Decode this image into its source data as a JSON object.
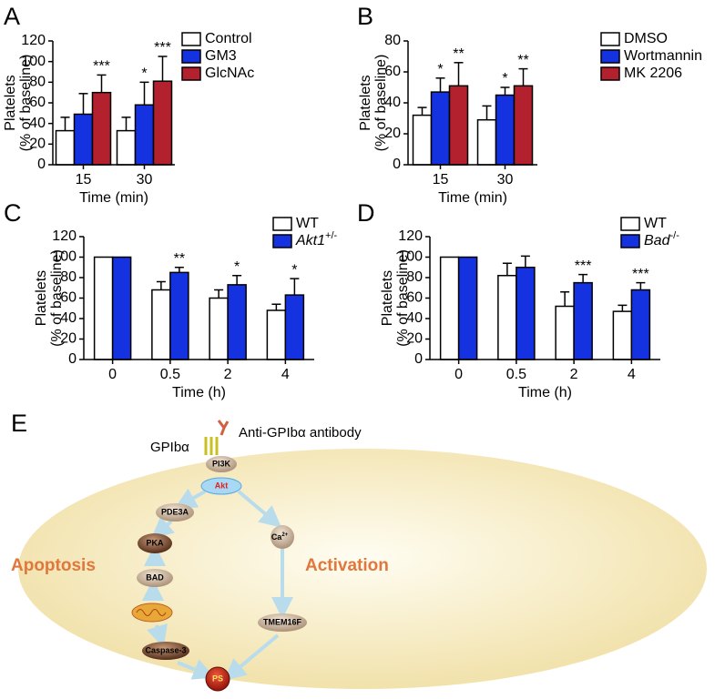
{
  "chart_data": [
    {
      "type": "bar",
      "panel": "A",
      "ylabel": [
        "Platelets",
        "(% of baseline)"
      ],
      "xlabel": "Time (min)",
      "categories": [
        "15",
        "30"
      ],
      "ylim": [
        0,
        120
      ],
      "yticks": [
        0,
        20,
        40,
        60,
        80,
        100,
        120
      ],
      "series": [
        {
          "name": "Control",
          "color": "#ffffff",
          "values": [
            33,
            33
          ],
          "errors": [
            13,
            13
          ],
          "significance": [
            null,
            null
          ]
        },
        {
          "name": "GM3",
          "color": "#1432e0",
          "values": [
            49,
            58
          ],
          "errors": [
            20,
            22
          ],
          "significance": [
            null,
            "*"
          ]
        },
        {
          "name": "GlcNAc",
          "color": "#b3202e",
          "values": [
            70,
            81
          ],
          "errors": [
            17,
            24
          ],
          "significance": [
            "***",
            "***"
          ]
        }
      ]
    },
    {
      "type": "bar",
      "panel": "B",
      "ylabel": [
        "Platelets",
        "(% of baseline)"
      ],
      "xlabel": "Time (min)",
      "categories": [
        "15",
        "30"
      ],
      "ylim": [
        0,
        80
      ],
      "yticks": [
        0,
        20,
        40,
        60,
        80
      ],
      "series": [
        {
          "name": "DMSO",
          "color": "#ffffff",
          "values": [
            32,
            29
          ],
          "errors": [
            5,
            9
          ],
          "significance": [
            null,
            null
          ]
        },
        {
          "name": "Wortmannin",
          "color": "#1432e0",
          "values": [
            47,
            45
          ],
          "errors": [
            9,
            5
          ],
          "significance": [
            "*",
            "*"
          ]
        },
        {
          "name": "MK 2206",
          "color": "#b3202e",
          "values": [
            51,
            51
          ],
          "errors": [
            15,
            11
          ],
          "significance": [
            "**",
            "**"
          ]
        }
      ]
    },
    {
      "type": "bar",
      "panel": "C",
      "ylabel": [
        "Platelets",
        "(% of baseline)"
      ],
      "xlabel": "Time (h)",
      "categories": [
        "0",
        "0.5",
        "2",
        "4"
      ],
      "ylim": [
        0,
        120
      ],
      "yticks": [
        0,
        20,
        40,
        60,
        80,
        100,
        120
      ],
      "series": [
        {
          "name": "WT",
          "color": "#ffffff",
          "values": [
            100,
            68,
            60,
            48
          ],
          "errors": [
            0,
            8,
            8,
            6
          ],
          "significance": [
            null,
            null,
            null,
            null
          ]
        },
        {
          "name": "Akt1",
          "superscript": "+/-",
          "color": "#1432e0",
          "values": [
            100,
            85,
            73,
            63
          ],
          "errors": [
            0,
            5,
            9,
            16
          ],
          "significance": [
            null,
            "**",
            "*",
            "*"
          ]
        }
      ]
    },
    {
      "type": "bar",
      "panel": "D",
      "ylabel": [
        "Platelets",
        "(% of baseline)"
      ],
      "xlabel": "Time (h)",
      "categories": [
        "0",
        "0.5",
        "2",
        "4"
      ],
      "ylim": [
        0,
        120
      ],
      "yticks": [
        0,
        20,
        40,
        60,
        80,
        100,
        120
      ],
      "series": [
        {
          "name": "WT",
          "color": "#ffffff",
          "values": [
            100,
            82,
            52,
            47
          ],
          "errors": [
            0,
            12,
            14,
            6
          ],
          "significance": [
            null,
            null,
            null,
            null
          ]
        },
        {
          "name": "Bad",
          "superscript": "-/-",
          "color": "#1432e0",
          "values": [
            100,
            90,
            75,
            68
          ],
          "errors": [
            0,
            11,
            8,
            7
          ],
          "significance": [
            null,
            null,
            "***",
            "***"
          ]
        }
      ]
    }
  ],
  "diagram": {
    "panel": "E",
    "receptor": "GPIbα",
    "antibody": "Anti-GPIbα antibody",
    "left_label": "Apoptosis",
    "right_label": "Activation",
    "nodes": [
      {
        "label": "PI3K"
      },
      {
        "label": "Akt"
      },
      {
        "label": "PDE3A"
      },
      {
        "label": "Ca",
        "superscript": "2+"
      },
      {
        "label": "PKA"
      },
      {
        "label": "BAD"
      },
      {
        "label": "TMEM16F"
      },
      {
        "label": "Caspase-3"
      },
      {
        "label": "PS"
      }
    ]
  }
}
